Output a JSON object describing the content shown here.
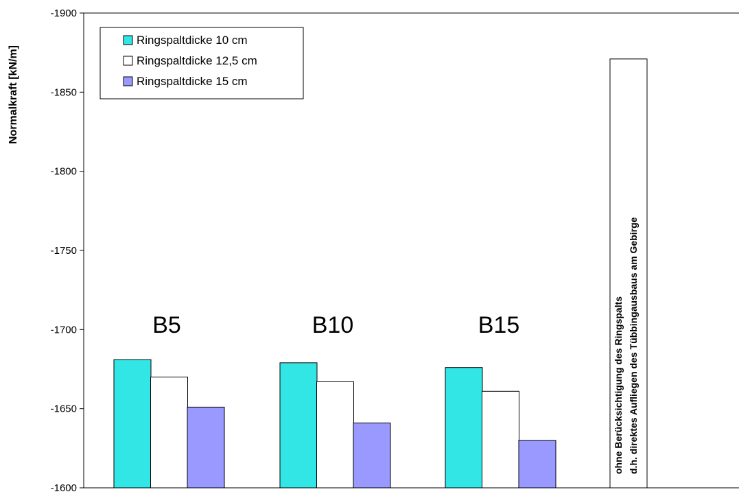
{
  "chart_data": {
    "type": "bar",
    "ylabel": "Normalkraft [kN/m]",
    "ylim": [
      -1600,
      -1900
    ],
    "yticks": [
      -1900,
      -1850,
      -1800,
      -1750,
      -1700,
      -1650,
      -1600
    ],
    "ytick_labels": [
      "-1900",
      "-1850",
      "-1800",
      "-1750",
      "-1700",
      "-1650",
      "-1600"
    ],
    "categories": [
      "B5",
      "B10",
      "B15"
    ],
    "series": [
      {
        "name": "Ringspaltdicke 10 cm",
        "color": "#33e6e6",
        "values": [
          -1681,
          -1679,
          -1676
        ]
      },
      {
        "name": "Ringspaltdicke 12,5 cm",
        "color": "#ffffff",
        "values": [
          -1670,
          -1667,
          -1661
        ]
      },
      {
        "name": "Ringspaltdicke 15 cm",
        "color": "#9999ff",
        "values": [
          -1651,
          -1641,
          -1630
        ]
      }
    ],
    "reference_bar": {
      "value": -1871,
      "color": "#ffffff",
      "label_lines": [
        "ohne Berücksichtigung des Ringspalts",
        "d.h. direktes Aufliegen des Tübbingausbaus am Gebirge"
      ]
    },
    "legend": "top-left",
    "grid": false
  }
}
